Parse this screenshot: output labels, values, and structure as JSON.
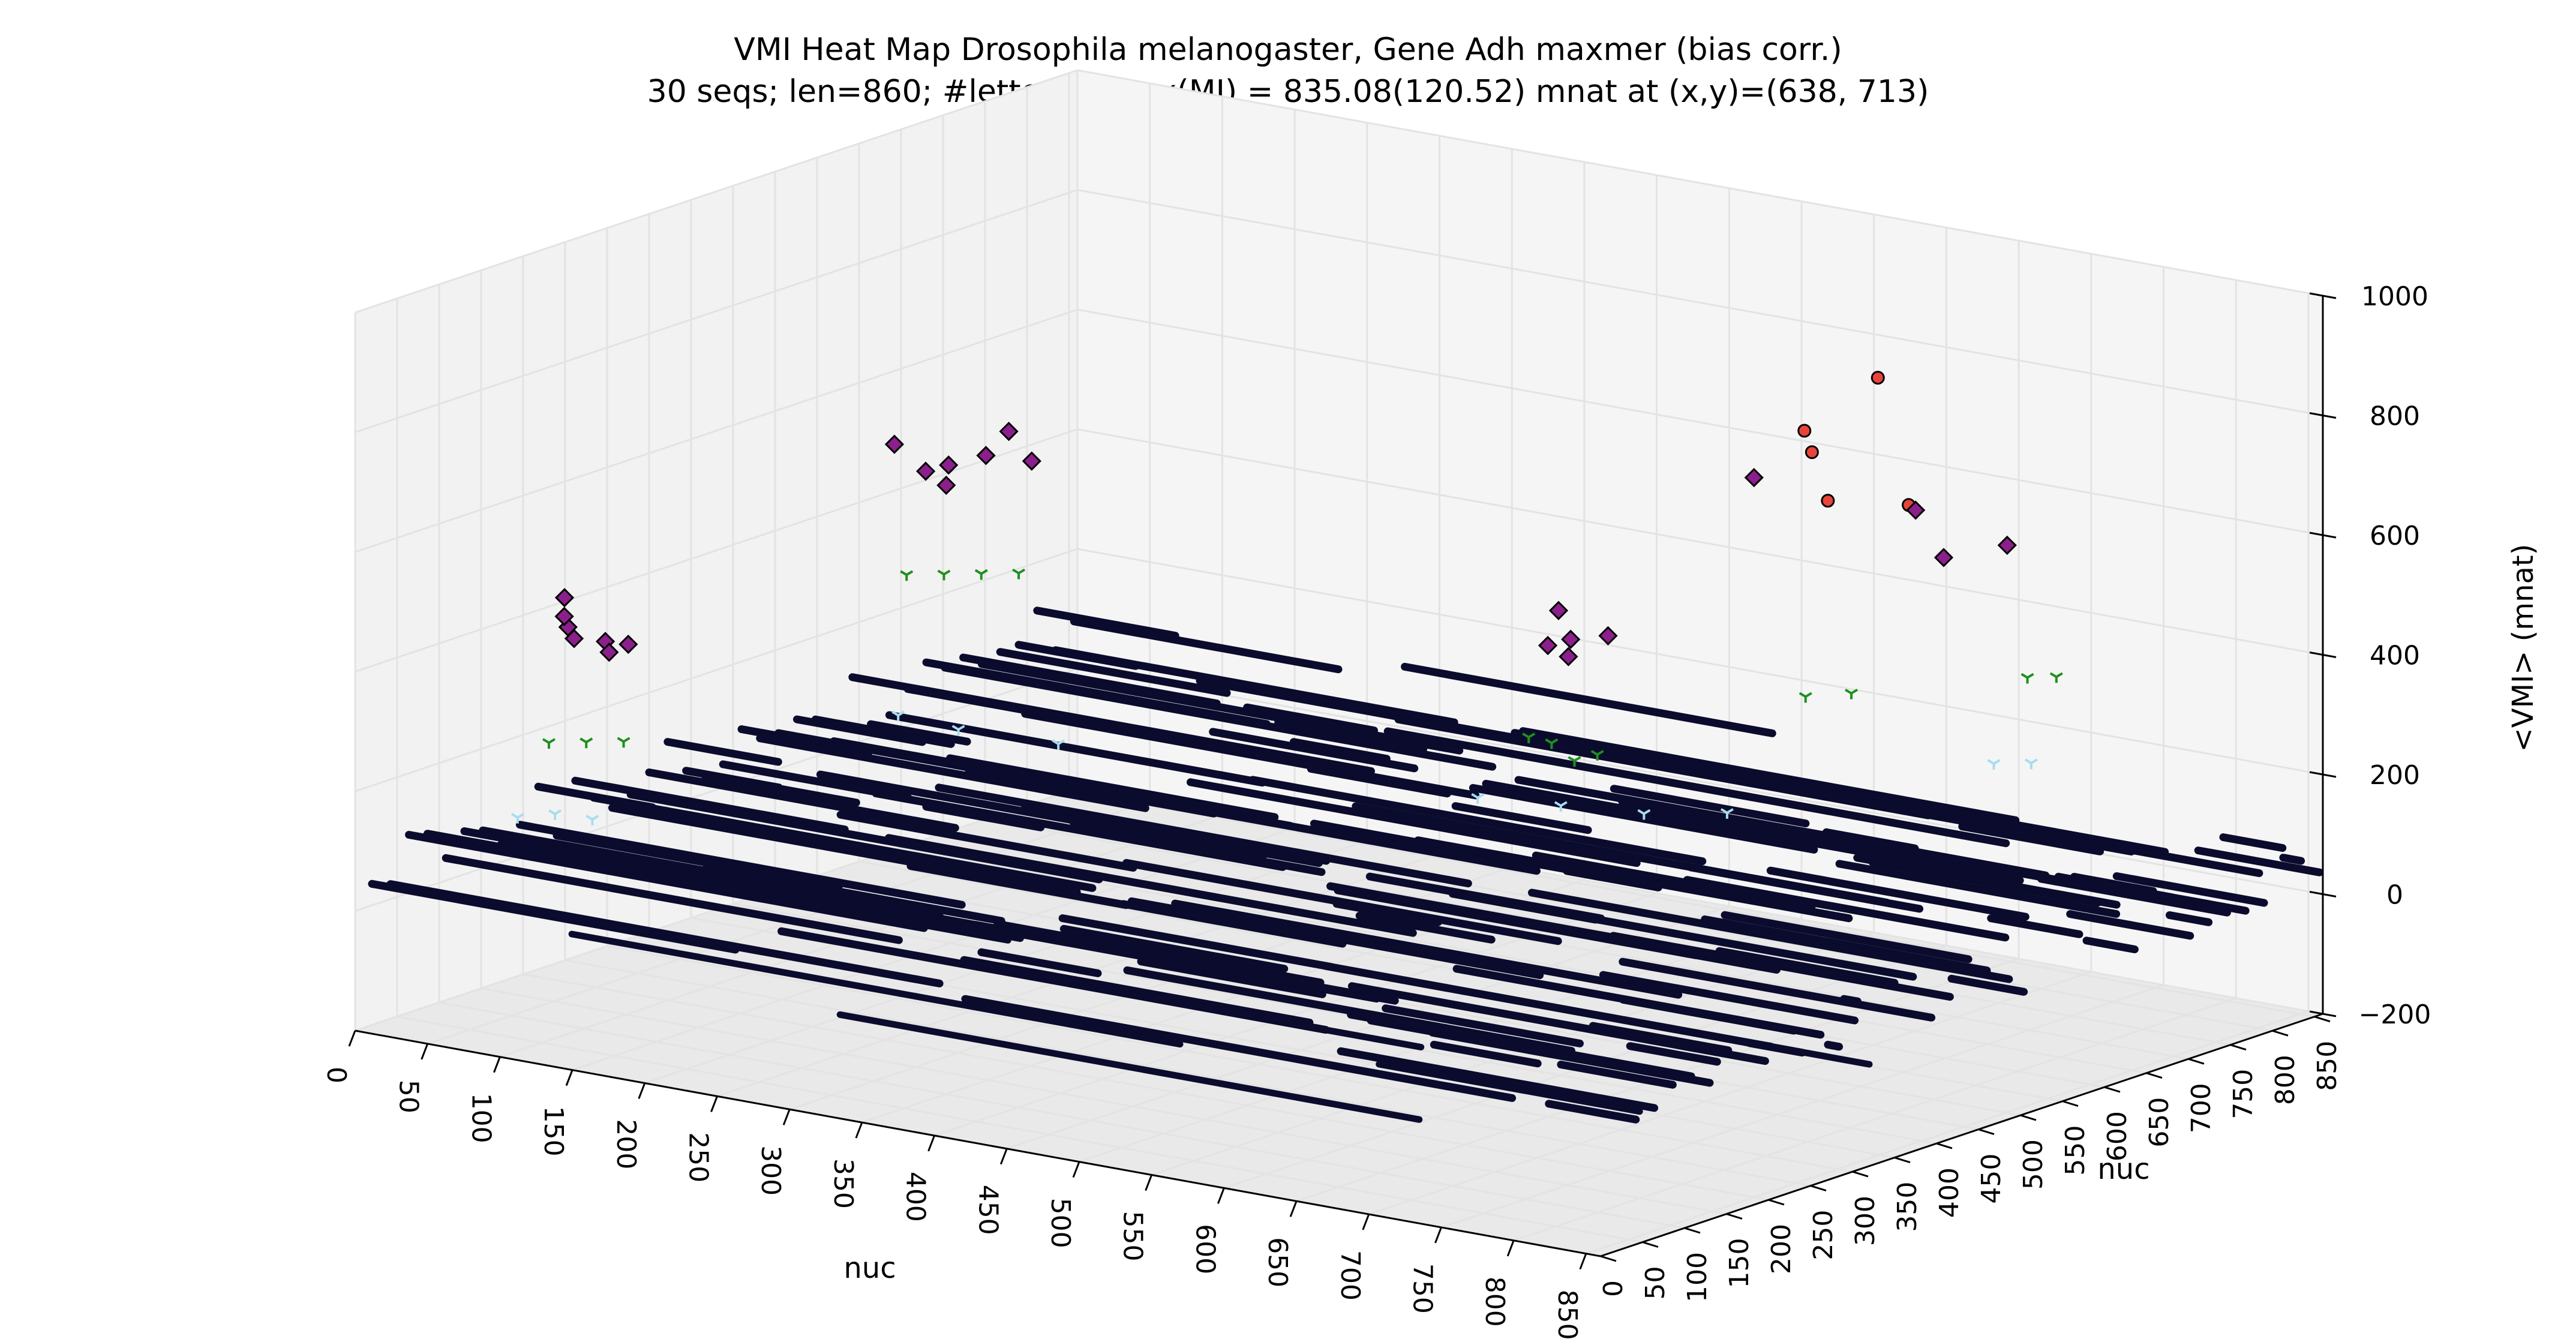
{
  "chart_data": {
    "type": "scatter",
    "subtype": "3d-scatter",
    "title": "VMI Heat Map Drosophila melanogaster, Gene Adh maxmer (bias corr.)",
    "subtitle": "30 seqs; len=860; #letter=1 max(MI) = 835.08(120.52) mnat at (x,y)=(638, 713)",
    "xlabel": "nuc",
    "ylabel": "nuc",
    "zlabel": "<VMI> (mnat)",
    "xlim": [
      0,
      860
    ],
    "ylim": [
      0,
      860
    ],
    "zlim": [
      -200,
      1000
    ],
    "x_ticks": [
      "0",
      "50",
      "100",
      "150",
      "200",
      "250",
      "300",
      "350",
      "400",
      "450",
      "500",
      "550",
      "600",
      "650",
      "700",
      "750",
      "800",
      "850"
    ],
    "y_ticks": [
      "0",
      "50",
      "100",
      "150",
      "200",
      "250",
      "300",
      "350",
      "400",
      "450",
      "500",
      "550",
      "600",
      "650",
      "700",
      "750",
      "800",
      "850"
    ],
    "z_ticks": [
      "−200",
      "0",
      "200",
      "400",
      "600",
      "800",
      "1000"
    ],
    "grid": true,
    "colors": {
      "pane": "#f2f2f2",
      "grid": "#e3e3e3",
      "base_points": "#0b0b2e",
      "light_blue_markers": "#a8dcef",
      "green_markers": "#1e8f1e",
      "purple_markers": "#8b1f8b",
      "red_markers": "#e8443a",
      "pink_markers": "#f0a6a0"
    },
    "series": [
      {
        "marker": "circle",
        "color": "#e8443a",
        "points": [
          [
            638,
            713,
            835
          ],
          [
            560,
            760,
            690
          ],
          [
            640,
            650,
            660
          ],
          [
            690,
            660,
            670
          ],
          [
            600,
            700,
            700
          ]
        ]
      },
      {
        "marker": "diamond",
        "color": "#8b1f8b",
        "points": [
          [
            60,
            150,
            430
          ],
          [
            70,
            140,
            420
          ],
          [
            80,
            160,
            410
          ],
          [
            90,
            170,
            405
          ],
          [
            100,
            130,
            415
          ],
          [
            40,
            180,
            425
          ],
          [
            75,
            120,
            500
          ],
          [
            220,
            300,
            690
          ],
          [
            230,
            310,
            700
          ],
          [
            240,
            290,
            680
          ],
          [
            250,
            320,
            720
          ],
          [
            210,
            280,
            740
          ],
          [
            260,
            330,
            760
          ],
          [
            270,
            340,
            710
          ],
          [
            580,
            420,
            500
          ],
          [
            590,
            430,
            510
          ],
          [
            600,
            410,
            495
          ],
          [
            610,
            440,
            520
          ],
          [
            570,
            450,
            540
          ],
          [
            560,
            700,
            640
          ],
          [
            660,
            720,
            620
          ],
          [
            720,
            650,
            600
          ],
          [
            700,
            760,
            560
          ]
        ]
      },
      {
        "marker": "tri",
        "color": "#1e8f1e",
        "points": [
          [
            70,
            110,
            260
          ],
          [
            90,
            120,
            265
          ],
          [
            110,
            130,
            270
          ],
          [
            230,
            260,
            540
          ],
          [
            250,
            270,
            545
          ],
          [
            270,
            280,
            550
          ],
          [
            290,
            290,
            555
          ],
          [
            590,
            380,
            370
          ],
          [
            600,
            390,
            360
          ],
          [
            610,
            400,
            330
          ],
          [
            620,
            410,
            340
          ],
          [
            700,
            520,
            420
          ],
          [
            720,
            540,
            425
          ],
          [
            850,
            560,
            500
          ],
          [
            830,
            560,
            490
          ]
        ]
      },
      {
        "marker": "tri",
        "color": "#a8dcef",
        "points": [
          [
            60,
            90,
            140
          ],
          [
            80,
            100,
            150
          ],
          [
            100,
            110,
            145
          ],
          [
            230,
            250,
            310
          ],
          [
            260,
            270,
            290
          ],
          [
            300,
            320,
            260
          ],
          [
            520,
            440,
            210
          ],
          [
            560,
            470,
            200
          ],
          [
            600,
            500,
            190
          ],
          [
            640,
            530,
            195
          ],
          [
            850,
            530,
            370
          ],
          [
            830,
            520,
            365
          ]
        ]
      }
    ],
    "base_plane_z_range": [
      0,
      120
    ]
  }
}
